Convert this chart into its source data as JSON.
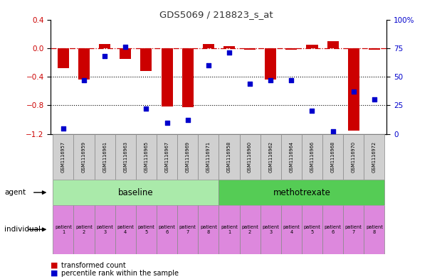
{
  "title": "GDS5069 / 218823_s_at",
  "samples": [
    "GSM1116957",
    "GSM1116959",
    "GSM1116961",
    "GSM1116963",
    "GSM1116965",
    "GSM1116967",
    "GSM1116969",
    "GSM1116971",
    "GSM1116958",
    "GSM1116960",
    "GSM1116962",
    "GSM1116964",
    "GSM1116966",
    "GSM1116968",
    "GSM1116970",
    "GSM1116972"
  ],
  "bar_values": [
    -0.28,
    -0.44,
    0.06,
    -0.15,
    -0.32,
    -0.82,
    -0.83,
    0.06,
    0.03,
    -0.02,
    -0.44,
    -0.02,
    0.05,
    0.1,
    -1.15,
    -0.02
  ],
  "scatter_values": [
    5,
    47,
    68,
    76,
    22,
    10,
    12,
    60,
    71,
    44,
    47,
    47,
    20,
    2,
    37,
    30
  ],
  "bar_color": "#cc0000",
  "scatter_color": "#0000cc",
  "ylim_left": [
    -1.2,
    0.4
  ],
  "ylim_right": [
    0,
    100
  ],
  "yticks_left": [
    -1.2,
    -0.8,
    -0.4,
    0.0,
    0.4
  ],
  "yticks_right": [
    0,
    25,
    50,
    75,
    100
  ],
  "hline_y": 0,
  "hline_color": "#cc0000",
  "dotted_line_color": "#000000",
  "dotted_lines": [
    -0.4,
    -0.8
  ],
  "agent_baseline_color": "#aaeaaa",
  "agent_methotrexate_color": "#55cc55",
  "individual_color": "#dd88dd",
  "agent_label": "agent",
  "individual_label": "individual",
  "baseline_label": "baseline",
  "methotrexate_label": "methotrexate",
  "legend_bar_label": "transformed count",
  "legend_scatter_label": "percentile rank within the sample",
  "background_color": "#ffffff",
  "plot_bg_color": "#ffffff"
}
